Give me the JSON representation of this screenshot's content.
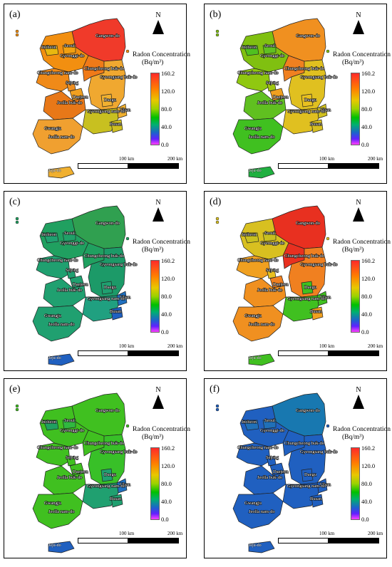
{
  "legend": {
    "title": "Radon Concentration",
    "unit": "(Bq/m³)",
    "ticks": [
      "160.2",
      "120.0",
      "80.0",
      "40.0",
      "0.0"
    ],
    "min": 0.0,
    "max": 160.2
  },
  "north_label": "N",
  "scale": {
    "label_100": "100 km",
    "label_200": "200 km"
  },
  "regions": {
    "gangwon": "Gangwon-do",
    "incheon": "Incheon",
    "seoul": "Seoul",
    "gyeonggi": "Gyeonggi-do",
    "chungbuk": "Chungcheong buk-do",
    "chungnam": "Chungcheong nam-do",
    "sejong": "Sejong",
    "daejeon": "Daejeon",
    "gyeongbuk": "Gyeongsang buk-do",
    "jeonbuk": "Jeolla buk-do",
    "daegu": "Daegu",
    "ulsan": "Ulsan",
    "gyeongnam": "Gyeongsang nam-do",
    "busan": "Busan",
    "gwangju": "Gwangju",
    "jeonnam": "Jeolla nam-do",
    "jeju": "Jeju-do"
  },
  "panels": [
    {
      "label": "(a)",
      "colors": {
        "gangwon": "#f03a2a",
        "gyeonggi": "#f28f10",
        "seoul": "#f2a010",
        "incheon": "#e8b810",
        "chungbuk": "#f07a18",
        "chungnam": "#f08a18",
        "sejong": "#f09020",
        "daejeon": "#f0a020",
        "gyeongbuk": "#f0a830",
        "jeonbuk": "#e87818",
        "daegu": "#f0b030",
        "ulsan": "#f0b030",
        "gyeongnam": "#c8c020",
        "busan": "#d0c020",
        "gwangju": "#f0b030",
        "jeonnam": "#f0a030",
        "jeju": "#f0b030"
      }
    },
    {
      "label": "(b)",
      "colors": {
        "gangwon": "#f09020",
        "gyeonggi": "#80c010",
        "seoul": "#60c020",
        "incheon": "#50c020",
        "chungbuk": "#f08020",
        "chungnam": "#90c810",
        "sejong": "#a0c810",
        "daejeon": "#f0a020",
        "gyeongbuk": "#e0c020",
        "jeonbuk": "#60c020",
        "daegu": "#e8c020",
        "ulsan": "#d0c020",
        "gyeongnam": "#e0c020",
        "busan": "#d8c020",
        "gwangju": "#50c020",
        "jeonnam": "#40c020",
        "jeju": "#20b040"
      }
    },
    {
      "label": "(c)",
      "colors": {
        "gangwon": "#30a050",
        "gyeonggi": "#20a060",
        "seoul": "#20a068",
        "incheon": "#20a070",
        "chungbuk": "#20a060",
        "chungnam": "#20a070",
        "sejong": "#20a070",
        "daejeon": "#20a070",
        "gyeongbuk": "#1c9a68",
        "jeonbuk": "#20a070",
        "daegu": "#20a070",
        "ulsan": "#2070c0",
        "gyeongnam": "#20a080",
        "busan": "#2060c0",
        "gwangju": "#20a080",
        "jeonnam": "#20a070",
        "jeju": "#2060c0"
      }
    },
    {
      "label": "(d)",
      "colors": {
        "gangwon": "#e83020",
        "gyeonggi": "#d8c020",
        "seoul": "#c8c020",
        "incheon": "#c8c020",
        "chungbuk": "#e83020",
        "chungnam": "#f0a020",
        "sejong": "#e8c020",
        "daejeon": "#f08020",
        "gyeongbuk": "#f08020",
        "jeonbuk": "#f09020",
        "daegu": "#40c020",
        "ulsan": "#40c020",
        "gyeongnam": "#40c020",
        "busan": "#f0a020",
        "gwangju": "#f09020",
        "jeonnam": "#f09020",
        "jeju": "#40c020"
      }
    },
    {
      "label": "(e)",
      "colors": {
        "gangwon": "#40c020",
        "gyeonggi": "#40c020",
        "seoul": "#30b840",
        "incheon": "#20a060",
        "chungbuk": "#40c020",
        "chungnam": "#40c020",
        "sejong": "#40c020",
        "daejeon": "#40c020",
        "gyeongbuk": "#38c028",
        "jeonbuk": "#40c020",
        "daegu": "#20a070",
        "ulsan": "#2070c0",
        "gyeongnam": "#20a070",
        "busan": "#20a070",
        "gwangju": "#20a070",
        "jeonnam": "#40c020",
        "jeju": "#2060c0"
      }
    },
    {
      "label": "(f)",
      "colors": {
        "gangwon": "#1878b0",
        "gyeonggi": "#2060c0",
        "seoul": "#2070b8",
        "incheon": "#2070b8",
        "chungbuk": "#2060c0",
        "chungnam": "#2060c0",
        "sejong": "#2060c0",
        "daejeon": "#2060c0",
        "gyeongbuk": "#2060c0",
        "jeonbuk": "#2060c0",
        "daegu": "#2060c0",
        "ulsan": "#2060c0",
        "gyeongnam": "#2060c0",
        "busan": "#2060c0",
        "gwangju": "#2060c0",
        "jeonnam": "#2060c0",
        "jeju": "#2060c0"
      }
    }
  ]
}
